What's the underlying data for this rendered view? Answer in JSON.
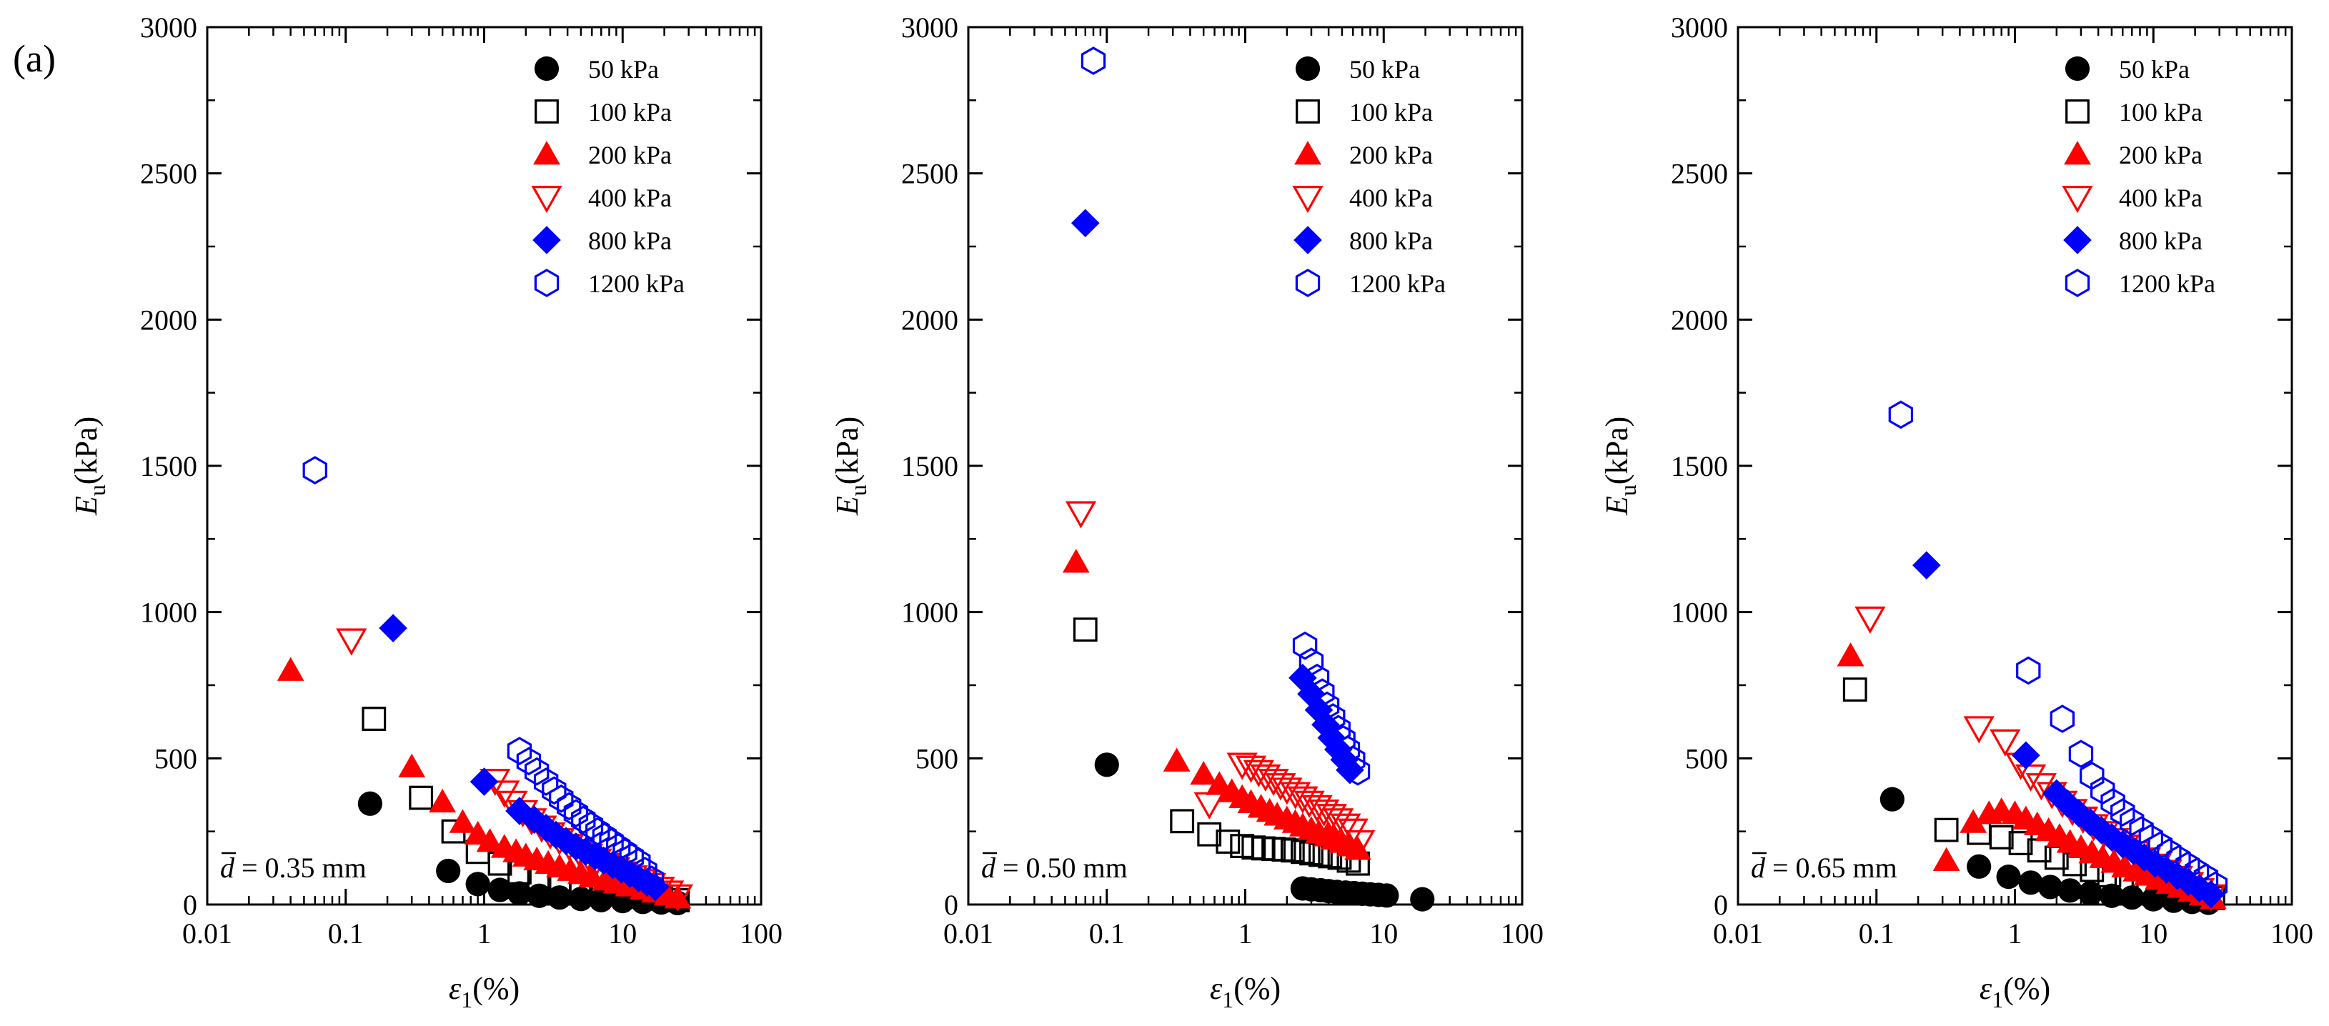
{
  "figure_label": "(a)",
  "axis_text": {
    "y_main": "E",
    "y_sub": "u",
    "y_unit": "(kPa)",
    "x_main": "ε",
    "x_sub": "1",
    "x_unit": "(%)"
  },
  "series_style": [
    {
      "name": "50 kPa",
      "marker": "circle",
      "filled": true,
      "color": "#000000"
    },
    {
      "name": "100 kPa",
      "marker": "square",
      "filled": false,
      "color": "#000000"
    },
    {
      "name": "200 kPa",
      "marker": "triangle-up",
      "filled": true,
      "color": "#ff0000"
    },
    {
      "name": "400 kPa",
      "marker": "triangle-down",
      "filled": false,
      "color": "#ff0000"
    },
    {
      "name": "800 kPa",
      "marker": "diamond",
      "filled": true,
      "color": "#0000ff"
    },
    {
      "name": "1200 kPa",
      "marker": "hexagon",
      "filled": false,
      "color": "#0000ff"
    }
  ],
  "chart_data": [
    {
      "type": "scatter",
      "annotation": "d = 0.35 mm",
      "xlabel": "ε1(%)",
      "ylabel": "Eu(kPa)",
      "xscale": "log",
      "xlim": [
        0.01,
        100
      ],
      "ylim": [
        0,
        3000
      ],
      "xticks": [
        "0.01",
        "0.1",
        "1",
        "10",
        "100"
      ],
      "yticks": [
        "0",
        "500",
        "1000",
        "1500",
        "2000",
        "2500",
        "3000"
      ],
      "legend": "top-right",
      "series": [
        {
          "name": "50 kPa",
          "x": [
            0.15,
            0.55,
            0.9,
            1.3,
            1.8,
            2.5,
            3.5,
            5,
            7,
            10,
            14,
            19,
            25
          ],
          "y": [
            345,
            115,
            70,
            50,
            38,
            30,
            24,
            19,
            15,
            12,
            9,
            7,
            5
          ]
        },
        {
          "name": "100 kPa",
          "x": [
            0.16,
            0.35,
            0.6,
            0.9,
            1.3,
            1.8,
            2.5,
            3.5,
            5,
            7,
            10,
            14,
            19,
            25
          ],
          "y": [
            635,
            365,
            250,
            180,
            140,
            110,
            88,
            70,
            56,
            45,
            35,
            27,
            20,
            15
          ]
        },
        {
          "name": "200 kPa",
          "x": [
            0.04,
            0.3,
            0.5,
            0.7,
            0.9,
            1.1,
            1.4,
            1.7,
            2.0,
            2.4,
            2.9,
            3.5,
            4.2,
            5,
            6,
            7.5,
            9,
            11,
            14,
            17,
            21,
            25
          ],
          "y": [
            800,
            470,
            350,
            280,
            240,
            215,
            195,
            180,
            165,
            152,
            140,
            128,
            116,
            105,
            94,
            83,
            73,
            63,
            52,
            42,
            32,
            22
          ]
        },
        {
          "name": "400 kPa",
          "x": [
            0.11,
            1.2,
            1.4,
            1.6,
            1.9,
            2.2,
            2.6,
            3.0,
            3.5,
            4.1,
            4.8,
            5.6,
            6.5,
            7.6,
            8.8,
            10.2,
            11.8,
            13.7,
            16,
            18.5,
            21.5,
            25
          ],
          "y": [
            905,
            425,
            385,
            350,
            318,
            290,
            265,
            242,
            222,
            203,
            185,
            168,
            152,
            137,
            122,
            108,
            95,
            82,
            69,
            56,
            43,
            30
          ]
        },
        {
          "name": "800 kPa",
          "x": [
            0.22,
            1.0,
            1.8,
            2.3,
            2.8,
            3.3,
            3.9,
            4.6,
            5.4,
            6.3,
            7.3,
            8.5,
            9.8,
            11.3,
            13,
            15,
            17.2
          ],
          "y": [
            945,
            420,
            320,
            290,
            262,
            238,
            217,
            198,
            181,
            165,
            150,
            135,
            120,
            105,
            90,
            75,
            60
          ]
        },
        {
          "name": "1200 kPa",
          "x": [
            0.06,
            1.8,
            2.1,
            2.4,
            2.8,
            3.2,
            3.6,
            4.1,
            4.6,
            5.2,
            5.9,
            6.6,
            7.4,
            8.3,
            9.3,
            10.4,
            11.6,
            13,
            14.5,
            16.2
          ],
          "y": [
            1485,
            525,
            490,
            455,
            420,
            390,
            362,
            336,
            312,
            290,
            270,
            250,
            232,
            214,
            196,
            179,
            162,
            145,
            115,
            85
          ]
        }
      ]
    },
    {
      "type": "scatter",
      "annotation": "d = 0.50 mm",
      "xlabel": "ε1(%)",
      "ylabel": "Eu(kPa)",
      "xscale": "log",
      "xlim": [
        0.01,
        100
      ],
      "ylim": [
        0,
        3000
      ],
      "xticks": [
        "0.01",
        "0.1",
        "1",
        "10",
        "100"
      ],
      "yticks": [
        "0",
        "500",
        "1000",
        "1500",
        "2000",
        "2500",
        "3000"
      ],
      "legend": "top-right",
      "series": [
        {
          "name": "50 kPa",
          "x": [
            0.1,
            2.6,
            3.0,
            3.5,
            4.0,
            4.6,
            5.3,
            6.1,
            7.0,
            8.0,
            9.2,
            10.5,
            19
          ],
          "y": [
            478,
            55,
            52,
            49,
            46,
            43,
            41,
            39,
            37,
            35,
            33,
            31,
            18
          ]
        },
        {
          "name": "100 kPa",
          "x": [
            0.07,
            0.35,
            0.55,
            0.75,
            0.95,
            1.15,
            1.35,
            1.6,
            1.9,
            2.2,
            2.6,
            3.0,
            3.5,
            4.1,
            4.8,
            5.6,
            6.5
          ],
          "y": [
            940,
            285,
            240,
            215,
            200,
            195,
            192,
            190,
            188,
            185,
            180,
            175,
            170,
            165,
            160,
            150,
            140
          ]
        },
        {
          "name": "200 kPa",
          "x": [
            0.06,
            0.32,
            0.5,
            0.65,
            0.8,
            0.95,
            1.1,
            1.3,
            1.5,
            1.7,
            2.0,
            2.3,
            2.6,
            3.0,
            3.4,
            3.9,
            4.4,
            5.0,
            5.7,
            6.5
          ],
          "y": [
            1170,
            490,
            445,
            410,
            385,
            365,
            348,
            332,
            318,
            305,
            292,
            280,
            268,
            256,
            245,
            234,
            223,
            212,
            200,
            188
          ]
        },
        {
          "name": "400 kPa",
          "x": [
            0.065,
            0.55,
            0.95,
            1.1,
            1.25,
            1.4,
            1.6,
            1.8,
            2.0,
            2.3,
            2.6,
            2.9,
            3.3,
            3.7,
            4.2,
            4.7,
            5.3,
            6.0,
            6.7
          ],
          "y": [
            1340,
            345,
            480,
            470,
            455,
            440,
            425,
            410,
            395,
            380,
            365,
            350,
            335,
            320,
            305,
            290,
            272,
            255,
            215
          ]
        },
        {
          "name": "800 kPa",
          "x": [
            0.07,
            2.6,
            3.0,
            3.4,
            3.8,
            4.2,
            4.7,
            5.2,
            5.7
          ],
          "y": [
            2330,
            775,
            720,
            665,
            615,
            570,
            530,
            495,
            460
          ]
        },
        {
          "name": "1200 kPa",
          "x": [
            0.08,
            2.7,
            3.0,
            3.3,
            3.6,
            3.9,
            4.3,
            4.7,
            5.1,
            5.5,
            6.0,
            6.5
          ],
          "y": [
            2885,
            885,
            830,
            775,
            725,
            680,
            640,
            600,
            565,
            530,
            495,
            455
          ]
        }
      ]
    },
    {
      "type": "scatter",
      "annotation": "d = 0.65 mm",
      "xlabel": "ε1(%)",
      "ylabel": "Eu(kPa)",
      "xscale": "log",
      "xlim": [
        0.01,
        100
      ],
      "ylim": [
        0,
        3000
      ],
      "xticks": [
        "0.01",
        "0.1",
        "1",
        "10",
        "100"
      ],
      "yticks": [
        "0",
        "500",
        "1000",
        "1500",
        "2000",
        "2500",
        "3000"
      ],
      "legend": "top-right",
      "series": [
        {
          "name": "50 kPa",
          "x": [
            0.13,
            0.55,
            0.9,
            1.3,
            1.8,
            2.5,
            3.5,
            5,
            7,
            10,
            14,
            19,
            25
          ],
          "y": [
            360,
            130,
            95,
            75,
            60,
            48,
            38,
            30,
            24,
            18,
            13,
            9,
            6
          ]
        },
        {
          "name": "100 kPa",
          "x": [
            0.07,
            0.32,
            0.55,
            0.8,
            1.1,
            1.5,
            2.0,
            2.7,
            3.6,
            4.8,
            6.4,
            8.5,
            11.3,
            15,
            20,
            27
          ],
          "y": [
            735,
            255,
            245,
            230,
            210,
            185,
            160,
            138,
            118,
            100,
            84,
            70,
            57,
            45,
            33,
            22
          ]
        },
        {
          "name": "200 kPa",
          "x": [
            0.065,
            0.32,
            0.5,
            0.65,
            0.8,
            1.0,
            1.2,
            1.45,
            1.75,
            2.1,
            2.5,
            3.0,
            3.6,
            4.3,
            5.2,
            6.2,
            7.5,
            9,
            10.8,
            13,
            15.6,
            18.7,
            22.5,
            27
          ],
          "y": [
            850,
            150,
            280,
            310,
            320,
            310,
            292,
            272,
            252,
            232,
            212,
            194,
            176,
            160,
            144,
            128,
            114,
            100,
            86,
            72,
            58,
            45,
            32,
            20
          ]
        },
        {
          "name": "400 kPa",
          "x": [
            0.09,
            0.55,
            0.85,
            1.1,
            1.3,
            1.55,
            1.85,
            2.2,
            2.6,
            3.1,
            3.7,
            4.4,
            5.2,
            6.2,
            7.4,
            8.8,
            10.5,
            12.5,
            15,
            18,
            21.5,
            26
          ],
          "y": [
            980,
            605,
            560,
            480,
            440,
            410,
            380,
            350,
            322,
            296,
            270,
            246,
            222,
            200,
            178,
            156,
            135,
            114,
            93,
            72,
            51,
            30
          ]
        },
        {
          "name": "800 kPa",
          "x": [
            0.23,
            1.2,
            2.0,
            2.4,
            2.9,
            3.5,
            4.2,
            5.0,
            6.0,
            7.2,
            8.6,
            10.3,
            12.4,
            14.9,
            17.9,
            21.5,
            26
          ],
          "y": [
            1160,
            510,
            380,
            345,
            312,
            282,
            255,
            230,
            206,
            183,
            161,
            140,
            119,
            98,
            77,
            56,
            35
          ]
        },
        {
          "name": "1200 kPa",
          "x": [
            0.15,
            1.25,
            2.2,
            3.0,
            3.6,
            4.3,
            5.1,
            6.0,
            7.0,
            8.2,
            9.6,
            11.2,
            13,
            15.2,
            17.7,
            20.6,
            24,
            28
          ],
          "y": [
            1675,
            800,
            635,
            515,
            440,
            390,
            350,
            315,
            283,
            254,
            227,
            202,
            178,
            155,
            133,
            112,
            92,
            65
          ]
        }
      ]
    }
  ]
}
